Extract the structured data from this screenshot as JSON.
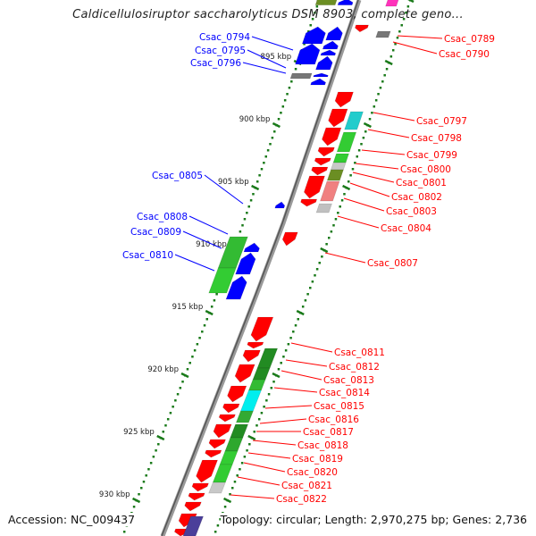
{
  "title": "Caldicellulosiruptor saccharolyticus DSM 8903, complete geno...",
  "accession": "Accession: NC_009437",
  "topology": "Topology: circular; Length: 2,970,275 bp; Genes: 2,736",
  "colors": {
    "forward_label": "#ff0000",
    "reverse_label": "#0000ff",
    "backbone": "#888888",
    "tick": "#1a7a1a"
  },
  "ticks": [
    "895 kbp",
    "900 kbp",
    "905 kbp",
    "910 kbp",
    "915 kbp",
    "920 kbp",
    "925 kbp",
    "930 kbp"
  ],
  "forward_labels": [
    "Csac_0789",
    "Csac_0790",
    "Csac_0797",
    "Csac_0798",
    "Csac_0799",
    "Csac_0800",
    "Csac_0801",
    "Csac_0802",
    "Csac_0803",
    "Csac_0804",
    "Csac_0807",
    "Csac_0811",
    "Csac_0812",
    "Csac_0813",
    "Csac_0814",
    "Csac_0815",
    "Csac_0816",
    "Csac_0817",
    "Csac_0818",
    "Csac_0819",
    "Csac_0820",
    "Csac_0821",
    "Csac_0822"
  ],
  "reverse_labels": [
    "Csac_0794",
    "Csac_0795",
    "Csac_0796",
    "Csac_0805",
    "Csac_0808",
    "Csac_0809",
    "Csac_0810"
  ],
  "genes": [
    {
      "track": "fwd1",
      "start": 897.36,
      "end": 898.57,
      "color": "#ff0000"
    },
    {
      "track": "fwd1",
      "start": 898.71,
      "end": 900.14,
      "color": "#ff0000"
    },
    {
      "track": "fwd1",
      "start": 900.21,
      "end": 901.64,
      "color": "#ff0000"
    },
    {
      "track": "fwd1",
      "start": 901.79,
      "end": 902.5,
      "color": "#ff0000"
    },
    {
      "track": "fwd1",
      "start": 902.64,
      "end": 903.21,
      "color": "#ff0000"
    },
    {
      "track": "fwd1",
      "start": 903.36,
      "end": 904.0,
      "color": "#ff0000"
    },
    {
      "track": "fwd1",
      "start": 904.07,
      "end": 905.86,
      "color": "#ff0000"
    },
    {
      "track": "fwd1",
      "start": 905.93,
      "end": 906.5,
      "color": "#ff0000"
    },
    {
      "track": "fwd0",
      "start": 908.57,
      "end": 909.64,
      "color": "#ff0000"
    },
    {
      "track": "fwd1",
      "start": 915.36,
      "end": 917.29,
      "color": "#ff0000"
    },
    {
      "track": "fwd1",
      "start": 917.36,
      "end": 917.86,
      "color": "#ff0000"
    },
    {
      "track": "fwd1",
      "start": 918.0,
      "end": 918.93,
      "color": "#ff0000"
    },
    {
      "track": "fwd1",
      "start": 919.14,
      "end": 920.57,
      "color": "#ff0000"
    },
    {
      "track": "fwd1",
      "start": 920.86,
      "end": 922.14,
      "color": "#ff0000"
    },
    {
      "track": "fwd1",
      "start": 922.29,
      "end": 923.0,
      "color": "#ff0000"
    },
    {
      "track": "fwd1",
      "start": 923.14,
      "end": 923.71,
      "color": "#ff0000"
    },
    {
      "track": "fwd1",
      "start": 923.93,
      "end": 925.0,
      "color": "#ff0000"
    },
    {
      "track": "fwd1",
      "start": 925.14,
      "end": 925.86,
      "color": "#ff0000"
    },
    {
      "track": "fwd1",
      "start": 926.0,
      "end": 926.57,
      "color": "#ff0000"
    },
    {
      "track": "fwd1",
      "start": 926.79,
      "end": 928.57,
      "color": "#ff0000"
    },
    {
      "track": "fwd1",
      "start": 928.64,
      "end": 929.29,
      "color": "#ff0000"
    },
    {
      "track": "fwd1",
      "start": 929.43,
      "end": 930.0,
      "color": "#ff0000"
    },
    {
      "track": "fwd1",
      "start": 930.14,
      "end": 930.86,
      "color": "#ff0000"
    },
    {
      "track": "fwd1",
      "start": 931.07,
      "end": 932.14,
      "color": "#ff0000"
    },
    {
      "track": "fwd1",
      "start": 932.29,
      "end": 932.86,
      "color": "#ff0000"
    },
    {
      "track": "fwd0",
      "start": 892.0,
      "end": 892.55,
      "color": "#ff0000"
    },
    {
      "track": "fwd2",
      "start": 892.5,
      "end": 893.0,
      "color": "#777777"
    },
    {
      "track": "fwd3",
      "start": 889.9,
      "end": 890.5,
      "color": "#ff33bb"
    },
    {
      "track": "fwd2",
      "start": 898.93,
      "end": 900.36,
      "color": "#22cccc"
    },
    {
      "track": "fwd2",
      "start": 900.57,
      "end": 902.14,
      "color": "#33cc33"
    },
    {
      "track": "fwd2",
      "start": 902.29,
      "end": 903.0,
      "color": "#33cc33"
    },
    {
      "track": "fwd2",
      "start": 903.0,
      "end": 903.57,
      "color": "#c8c8c8"
    },
    {
      "track": "fwd2",
      "start": 903.57,
      "end": 904.43,
      "color": "#6b8e23"
    },
    {
      "track": "fwd2",
      "start": 904.5,
      "end": 906.07,
      "color": "#f08080"
    },
    {
      "track": "fwd2",
      "start": 906.29,
      "end": 907.0,
      "color": "#c0c0c0"
    },
    {
      "track": "fwd2",
      "start": 917.86,
      "end": 919.43,
      "color": "#228b22"
    },
    {
      "track": "fwd2",
      "start": 919.43,
      "end": 920.36,
      "color": "#228b22"
    },
    {
      "track": "fwd2",
      "start": 920.36,
      "end": 921.21,
      "color": "#33bb33"
    },
    {
      "track": "fwd2",
      "start": 921.21,
      "end": 922.86,
      "color": "#00eeee"
    },
    {
      "track": "fwd2",
      "start": 922.86,
      "end": 923.79,
      "color": "#33aa33"
    },
    {
      "track": "fwd2",
      "start": 923.93,
      "end": 925.0,
      "color": "#228b22"
    },
    {
      "track": "fwd2",
      "start": 925.0,
      "end": 926.07,
      "color": "#2ea82e"
    },
    {
      "track": "fwd2",
      "start": 926.07,
      "end": 927.14,
      "color": "#33cc33"
    },
    {
      "track": "fwd2",
      "start": 927.14,
      "end": 928.57,
      "color": "#33cc33"
    },
    {
      "track": "fwd2",
      "start": 928.57,
      "end": 929.43,
      "color": "#c8c8c8"
    },
    {
      "track": "fwd2b",
      "start": 931.29,
      "end": 932.86,
      "color": "#4b3f9a"
    },
    {
      "track": "rev1",
      "start": 889.9,
      "end": 890.4,
      "color": "#0000ff"
    },
    {
      "track": "rev2",
      "start": 889.9,
      "end": 890.4,
      "color": "#6b8e23"
    },
    {
      "track": "rev2",
      "start": 892.14,
      "end": 893.5,
      "color": "#0000ff"
    },
    {
      "track": "rev2",
      "start": 893.5,
      "end": 895.14,
      "color": "#0000ff"
    },
    {
      "track": "rev1",
      "start": 892.14,
      "end": 893.21,
      "color": "#0000ff"
    },
    {
      "track": "rev1",
      "start": 893.29,
      "end": 893.93,
      "color": "#0000ff"
    },
    {
      "track": "rev1",
      "start": 894.0,
      "end": 894.43,
      "color": "#0000ff"
    },
    {
      "track": "rev1",
      "start": 894.5,
      "end": 895.57,
      "color": "#0000ff"
    },
    {
      "track": "rev2",
      "start": 895.86,
      "end": 896.29,
      "color": "#777777"
    },
    {
      "track": "rev1",
      "start": 895.86,
      "end": 896.14,
      "color": "#0000ff"
    },
    {
      "track": "rev1",
      "start": 896.29,
      "end": 896.79,
      "color": "#0000ff"
    },
    {
      "track": "rev0",
      "start": 906.14,
      "end": 906.64,
      "color": "#0000ff"
    },
    {
      "track": "rev1b",
      "start": 909.43,
      "end": 910.14,
      "color": "#0000ff"
    },
    {
      "track": "rev1b",
      "start": 910.21,
      "end": 911.93,
      "color": "#0000ff"
    },
    {
      "track": "rev1b",
      "start": 912.07,
      "end": 913.93,
      "color": "#0000ff"
    },
    {
      "track": "rev3",
      "start": 908.93,
      "end": 911.43,
      "color": "#33bb33"
    },
    {
      "track": "rev3",
      "start": 911.43,
      "end": 913.43,
      "color": "#33cc33"
    }
  ]
}
